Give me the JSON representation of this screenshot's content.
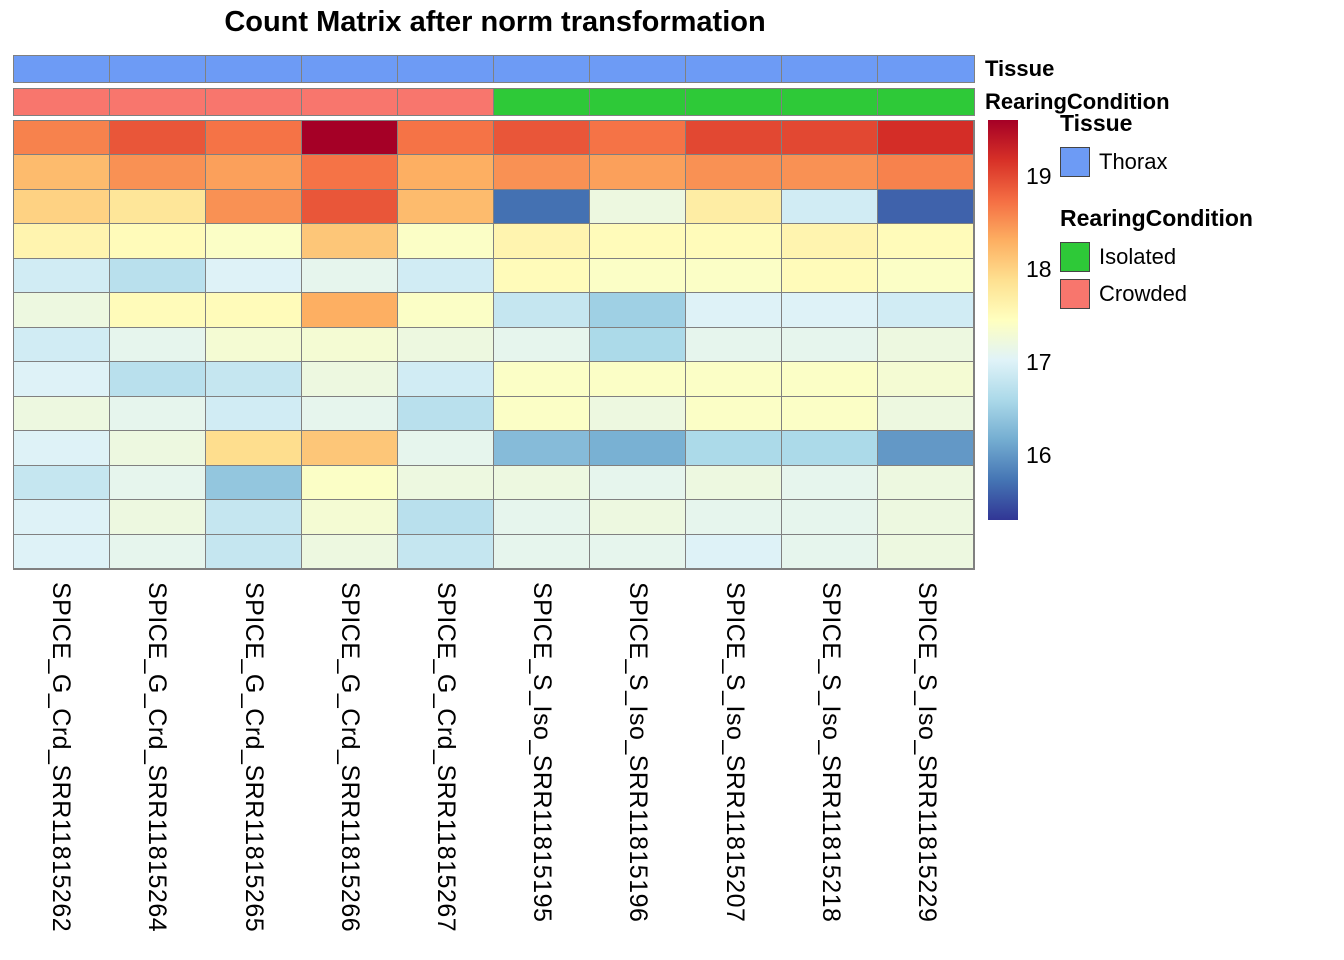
{
  "title": "Count Matrix after norm transformation",
  "annotations": {
    "tissue": {
      "label": "Tissue",
      "per_column": [
        "Thorax",
        "Thorax",
        "Thorax",
        "Thorax",
        "Thorax",
        "Thorax",
        "Thorax",
        "Thorax",
        "Thorax",
        "Thorax"
      ]
    },
    "rearing_condition": {
      "label": "RearingCondition",
      "per_column": [
        "Crowded",
        "Crowded",
        "Crowded",
        "Crowded",
        "Crowded",
        "Isolated",
        "Isolated",
        "Isolated",
        "Isolated",
        "Isolated"
      ]
    }
  },
  "colors": {
    "by_label": {
      "Thorax": "#6D9BF5",
      "Isolated": "#2EC938",
      "Crowded": "#F8766D"
    },
    "grid": "#808080",
    "colormap": [
      "#313695",
      "#4575b4",
      "#74add1",
      "#abd9e9",
      "#e0f3f8",
      "#ffffbf",
      "#fee090",
      "#fdae61",
      "#f46d43",
      "#d73027",
      "#a50026"
    ]
  },
  "colorbar": {
    "min": 15.3,
    "max": 19.6,
    "ticks": [
      19,
      18,
      17,
      16
    ]
  },
  "legend": {
    "tissue_title": "Tissue",
    "tissue_items": [
      {
        "label": "Thorax",
        "color_key": "Thorax"
      }
    ],
    "rearing_title": "RearingCondition",
    "rearing_items": [
      {
        "label": "Isolated",
        "color_key": "Isolated"
      },
      {
        "label": "Crowded",
        "color_key": "Crowded"
      }
    ]
  },
  "chart_data": {
    "type": "heatmap",
    "title": "Count Matrix after norm transformation",
    "columns": [
      "SPICE_G_Crd_SRR11815262",
      "SPICE_G_Crd_SRR11815264",
      "SPICE_G_Crd_SRR11815265",
      "SPICE_G_Crd_SRR11815266",
      "SPICE_G_Crd_SRR11815267",
      "SPICE_S_Iso_SRR11815195",
      "SPICE_S_Iso_SRR11815196",
      "SPICE_S_Iso_SRR11815207",
      "SPICE_S_Iso_SRR11815218",
      "SPICE_S_Iso_SRR11815229"
    ],
    "column_annotations": {
      "Tissue": [
        "Thorax",
        "Thorax",
        "Thorax",
        "Thorax",
        "Thorax",
        "Thorax",
        "Thorax",
        "Thorax",
        "Thorax",
        "Thorax"
      ],
      "RearingCondition": [
        "Crowded",
        "Crowded",
        "Crowded",
        "Crowded",
        "Crowded",
        "Isolated",
        "Isolated",
        "Isolated",
        "Isolated",
        "Isolated"
      ]
    },
    "values": [
      [
        18.6,
        18.9,
        18.7,
        19.6,
        18.7,
        18.9,
        18.7,
        19.0,
        19.0,
        19.2
      ],
      [
        18.2,
        18.5,
        18.4,
        18.7,
        18.3,
        18.5,
        18.4,
        18.5,
        18.5,
        18.6
      ],
      [
        18.0,
        17.8,
        18.5,
        18.9,
        18.2,
        15.7,
        17.2,
        17.7,
        16.9,
        15.6
      ],
      [
        17.6,
        17.5,
        17.4,
        18.1,
        17.4,
        17.6,
        17.5,
        17.5,
        17.6,
        17.5
      ],
      [
        16.9,
        16.7,
        17.0,
        17.1,
        16.9,
        17.5,
        17.4,
        17.4,
        17.5,
        17.4
      ],
      [
        17.2,
        17.5,
        17.5,
        18.3,
        17.4,
        16.8,
        16.5,
        17.0,
        17.0,
        16.9
      ],
      [
        16.9,
        17.1,
        17.3,
        17.3,
        17.2,
        17.1,
        16.6,
        17.1,
        17.1,
        17.2
      ],
      [
        17.0,
        16.7,
        16.8,
        17.2,
        16.9,
        17.4,
        17.4,
        17.4,
        17.4,
        17.3
      ],
      [
        17.2,
        17.1,
        16.9,
        17.1,
        16.7,
        17.4,
        17.2,
        17.4,
        17.4,
        17.2
      ],
      [
        17.0,
        17.2,
        17.9,
        18.1,
        17.1,
        16.3,
        16.2,
        16.6,
        16.6,
        16.0
      ],
      [
        16.8,
        17.1,
        16.4,
        17.4,
        17.2,
        17.2,
        17.1,
        17.2,
        17.1,
        17.2
      ],
      [
        17.0,
        17.2,
        16.8,
        17.3,
        16.7,
        17.1,
        17.2,
        17.1,
        17.1,
        17.2
      ],
      [
        17.0,
        17.1,
        16.8,
        17.2,
        16.8,
        17.1,
        17.1,
        17.0,
        17.1,
        17.2
      ]
    ],
    "value_range": [
      15.3,
      19.6
    ],
    "colormap": "RdYlBu reversed",
    "legend_position": "right",
    "grid": true
  }
}
